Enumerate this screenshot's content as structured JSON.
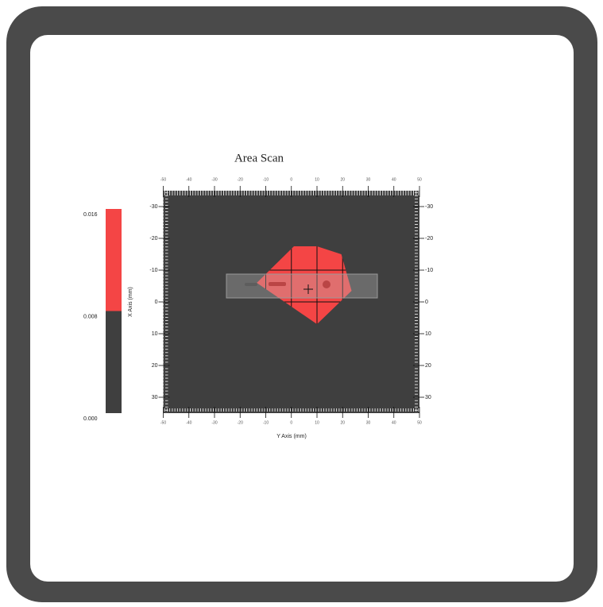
{
  "chart_data": {
    "type": "area_scan",
    "title": "Area Scan",
    "x_label": "Y Axis (mm)",
    "y_label": "X Axis (mm)",
    "xlim": [
      -50,
      50
    ],
    "xticks": [
      -50,
      -40,
      -30,
      -20,
      -10,
      0,
      10,
      20,
      30,
      40,
      50
    ],
    "ylim": [
      -35,
      35
    ],
    "yticks": [
      -30,
      -20,
      -10,
      0,
      10,
      20,
      30
    ],
    "background_color": "#3f3f3f",
    "region_color": "#f44545",
    "region": {
      "x": [
        1,
        10,
        19.5,
        23.5,
        10,
        -13.5
      ],
      "y": [
        -17.5,
        -17.5,
        -15,
        -3.5,
        7,
        -6
      ]
    },
    "colorbar": {
      "lim": [
        0,
        0.016
      ],
      "ticks": [
        {
          "value": 0,
          "label": "0.000"
        },
        0.008,
        0.016
      ],
      "levels": [
        0,
        0.008,
        0.016
      ],
      "colors": [
        "#3f3f3f",
        "#f44545"
      ]
    }
  }
}
